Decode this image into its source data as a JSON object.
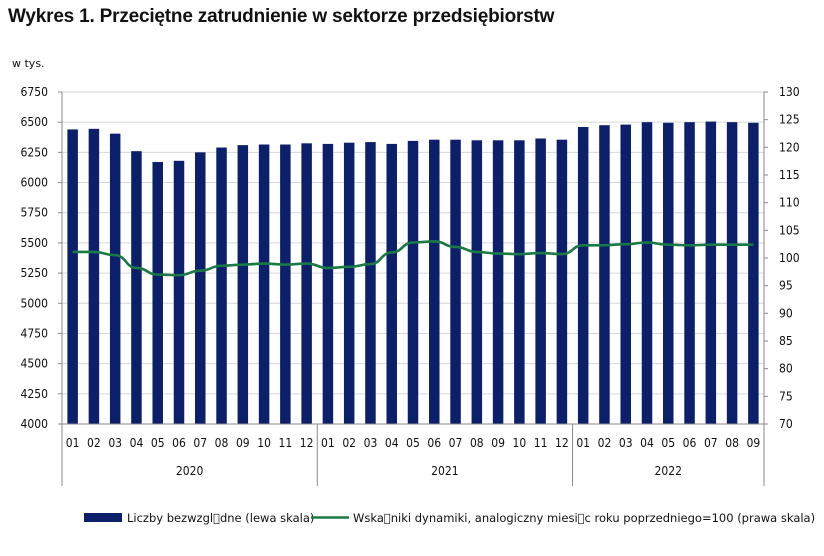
{
  "title": "Wykres 1. Przeciętne zatrudnienie w sektorze przedsiębiorstw",
  "colors": {
    "bar": "#0c1f6b",
    "line": "#1a7a45",
    "axis": "#888888"
  },
  "chart_data": {
    "type": "bar",
    "title": "Wykres 1. Przeciętne zatrudnienie w sektorze przedsiębiorstw",
    "left_axis": {
      "unit_label": "w tys.",
      "ylim": [
        4000,
        6750
      ],
      "ticks": [
        "4000",
        "4250",
        "4500",
        "4750",
        "5000",
        "5250",
        "5500",
        "5750",
        "6000",
        "6250",
        "6500",
        "6750"
      ]
    },
    "right_axis": {
      "ylim": [
        70,
        130
      ],
      "ticks": [
        "70",
        "75",
        "80",
        "85",
        "90",
        "95",
        "100",
        "105",
        "110",
        "115",
        "120",
        "125",
        "130"
      ]
    },
    "categories": [
      "01",
      "02",
      "03",
      "04",
      "05",
      "06",
      "07",
      "08",
      "09",
      "10",
      "11",
      "12",
      "01",
      "02",
      "03",
      "04",
      "05",
      "06",
      "07",
      "08",
      "09",
      "10",
      "11",
      "12",
      "01",
      "02",
      "03",
      "04",
      "05",
      "06",
      "07",
      "08",
      "09"
    ],
    "groups": [
      {
        "label": "2020",
        "count": 12
      },
      {
        "label": "2021",
        "count": 12
      },
      {
        "label": "2022",
        "count": 9
      }
    ],
    "series": [
      {
        "name": "Liczby bezwzgl\u0000dne (lewa skala)",
        "type": "bar",
        "axis": "left",
        "values": [
          6440,
          6445,
          6405,
          6260,
          6170,
          6180,
          6250,
          6290,
          6310,
          6315,
          6315,
          6325,
          6320,
          6330,
          6335,
          6320,
          6345,
          6355,
          6355,
          6350,
          6350,
          6350,
          6365,
          6355,
          6460,
          6475,
          6480,
          6500,
          6495,
          6500,
          6505,
          6500,
          6495
        ]
      },
      {
        "name": "Wska\u0000niki dynamiki, analogiczny miesi\u0000c roku poprzedniego=100 (prawa skala)",
        "type": "line",
        "axis": "right",
        "values": [
          101.1,
          101.1,
          100.5,
          98.2,
          97.0,
          96.9,
          97.7,
          98.6,
          98.8,
          99.0,
          98.8,
          99.0,
          98.2,
          98.4,
          98.9,
          101.0,
          102.8,
          103.0,
          102.0,
          101.1,
          100.8,
          100.7,
          100.9,
          100.7,
          102.3,
          102.3,
          102.5,
          102.8,
          102.4,
          102.3,
          102.4,
          102.4,
          102.4
        ]
      }
    ],
    "legend": [
      {
        "label": "Liczby bezwzgl\u0000dne (lewa skala)",
        "kind": "bar"
      },
      {
        "label": "Wska\u0000niki dynamiki, analogiczny miesi\u0000c roku poprzedniego=100 (prawa skala)",
        "kind": "line"
      }
    ],
    "legend_position": "bottom",
    "grid": true
  }
}
